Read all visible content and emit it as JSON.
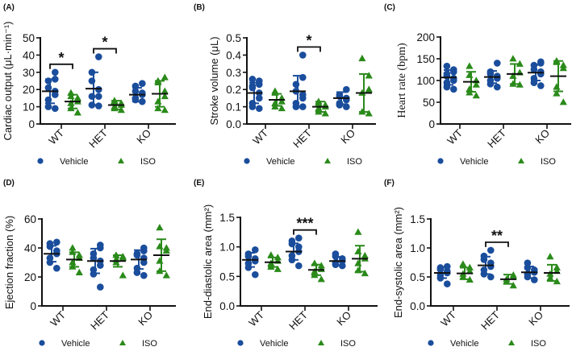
{
  "colors": {
    "vehicle": "#1a4d9c",
    "iso": "#2a8a1a",
    "axis": "#111111"
  },
  "legend": {
    "vehicle": "Vehicle",
    "iso": "ISO",
    "vehicle_marker": "circle",
    "iso_marker": "triangle"
  },
  "chart_data": [
    {
      "type": "scatter",
      "panel": "(A)",
      "ylabel": "Cardiac output (μL·min⁻¹)",
      "ylim": [
        0,
        50
      ],
      "yticks": [
        "0",
        "10",
        "20",
        "30",
        "40",
        "50"
      ],
      "yticks_values": [
        0,
        10,
        20,
        30,
        40,
        50
      ],
      "categories": [
        "WT",
        "HET",
        "KO"
      ],
      "series": [
        {
          "name": "Vehicle",
          "points": [
            [
              9,
              10,
              14,
              17,
              19,
              21,
              25,
              26,
              30
            ],
            [
              10.5,
              11,
              16,
              16,
              20,
              25,
              30,
              39
            ],
            [
              13,
              14,
              15,
              17,
              18,
              19,
              22,
              23.5
            ]
          ],
          "mean": [
            19,
            20.5,
            17
          ],
          "sd": [
            7,
            9.5,
            4
          ]
        },
        {
          "name": "ISO",
          "points": [
            [
              6.5,
              9,
              12,
              13,
              15,
              16,
              18
            ],
            [
              8,
              9,
              10,
              11,
              12,
              13,
              13.5
            ],
            [
              8,
              9,
              13,
              16,
              19,
              24,
              25,
              27
            ]
          ],
          "mean": [
            13,
            11,
            17.5
          ],
          "sd": [
            4,
            2.5,
            7.5
          ]
        }
      ],
      "significance": [
        {
          "category": "WT",
          "label": "*"
        },
        {
          "category": "HET",
          "label": "*"
        }
      ]
    },
    {
      "type": "scatter",
      "panel": "(B)",
      "ylabel": "Stroke volume (μL)",
      "ylim": [
        0,
        0.5
      ],
      "yticks": [
        "0.0",
        "0.1",
        "0.2",
        "0.3",
        "0.4",
        "0.5"
      ],
      "yticks_values": [
        0,
        0.1,
        0.2,
        0.3,
        0.4,
        0.5
      ],
      "categories": [
        "WT",
        "HET",
        "KO"
      ],
      "series": [
        {
          "name": "Vehicle",
          "points": [
            [
              0.09,
              0.1,
              0.12,
              0.15,
              0.18,
              0.21,
              0.22,
              0.23,
              0.25,
              0.26
            ],
            [
              0.1,
              0.1,
              0.12,
              0.15,
              0.17,
              0.19,
              0.23,
              0.27,
              0.4
            ],
            [
              0.1,
              0.11,
              0.12,
              0.14,
              0.15,
              0.16,
              0.17,
              0.2
            ]
          ],
          "mean": [
            0.18,
            0.19,
            0.15
          ],
          "sd": [
            0.06,
            0.09,
            0.035
          ]
        },
        {
          "name": "ISO",
          "points": [
            [
              0.09,
              0.1,
              0.12,
              0.13,
              0.15,
              0.18,
              0.19
            ],
            [
              0.06,
              0.07,
              0.09,
              0.1,
              0.11,
              0.12,
              0.13
            ],
            [
              0.06,
              0.07,
              0.18,
              0.2,
              0.28,
              0.38
            ]
          ],
          "mean": [
            0.14,
            0.1,
            0.18
          ],
          "sd": [
            0.035,
            0.03,
            0.11
          ]
        }
      ],
      "significance": [
        {
          "category": "HET",
          "label": "*"
        }
      ]
    },
    {
      "type": "scatter",
      "panel": "(C)",
      "ylabel": "Heart rate (bpm)",
      "ylim": [
        0,
        200
      ],
      "yticks": [
        "0",
        "50",
        "100",
        "150",
        "200"
      ],
      "yticks_values": [
        0,
        50,
        100,
        150,
        200
      ],
      "categories": [
        "WT",
        "HET",
        "KO"
      ],
      "series": [
        {
          "name": "Vehicle",
          "points": [
            [
              80,
              85,
              95,
              100,
              105,
              110,
              115,
              120,
              125,
              133
            ],
            [
              85,
              92,
              100,
              105,
              110,
              115,
              120,
              140
            ],
            [
              88,
              95,
              105,
              115,
              120,
              125,
              135,
              140,
              143
            ]
          ],
          "mean": [
            107,
            108,
            118
          ],
          "sd": [
            17,
            14,
            18
          ]
        },
        {
          "name": "ISO",
          "points": [
            [
              65,
              72,
              80,
              90,
              100,
              112,
              133
            ],
            [
              90,
              92,
              110,
              118,
              138,
              150
            ],
            [
              50,
              70,
              85,
              128,
              135,
              142,
              145
            ]
          ],
          "mean": [
            97,
            115,
            110
          ],
          "sd": [
            23,
            23,
            35
          ]
        }
      ],
      "significance": []
    },
    {
      "type": "scatter",
      "panel": "(D)",
      "ylabel": "Ejection fraction (%)",
      "ylim": [
        0,
        60
      ],
      "yticks": [
        "0",
        "20",
        "40",
        "60"
      ],
      "yticks_values": [
        0,
        20,
        40,
        60
      ],
      "categories": [
        "WT",
        "HET",
        "KO"
      ],
      "series": [
        {
          "name": "Vehicle",
          "points": [
            [
              26,
              30,
              33,
              36,
              38,
              41,
              43,
              44
            ],
            [
              13,
              22,
              25,
              28,
              31,
              33,
              36,
              40,
              42
            ],
            [
              21,
              23,
              26,
              30,
              33,
              35,
              36,
              38,
              40
            ]
          ],
          "mean": [
            36,
            31,
            32
          ],
          "sd": [
            5.5,
            8.5,
            6.5
          ]
        },
        {
          "name": "ISO",
          "points": [
            [
              23,
              27,
              30,
              33,
              35,
              37,
              40
            ],
            [
              21,
              30,
              32,
              33,
              34,
              35
            ],
            [
              21,
              24,
              31,
              38,
              40,
              41,
              54
            ]
          ],
          "mean": [
            32,
            31,
            35
          ],
          "sd": [
            5,
            4,
            11
          ]
        }
      ],
      "significance": []
    },
    {
      "type": "scatter",
      "panel": "(E)",
      "ylabel": "End-diastolic area (mm²)",
      "ylim": [
        0,
        1.5
      ],
      "yticks": [
        "0.0",
        "0.5",
        "1.0",
        "1.5"
      ],
      "yticks_values": [
        0,
        0.5,
        1.0,
        1.5
      ],
      "categories": [
        "WT",
        "HET",
        "KO"
      ],
      "series": [
        {
          "name": "Vehicle",
          "points": [
            [
              0.53,
              0.65,
              0.72,
              0.76,
              0.8,
              0.84,
              0.88,
              0.95
            ],
            [
              0.68,
              0.78,
              0.85,
              0.92,
              1.0,
              1.05,
              1.1,
              1.15
            ],
            [
              0.68,
              0.7,
              0.73,
              0.76,
              0.8,
              0.84,
              0.88
            ]
          ],
          "mean": [
            0.78,
            0.92,
            0.76
          ],
          "sd": [
            0.12,
            0.14,
            0.07
          ]
        },
        {
          "name": "ISO",
          "points": [
            [
              0.62,
              0.66,
              0.72,
              0.76,
              0.82,
              0.86
            ],
            [
              0.45,
              0.52,
              0.58,
              0.62,
              0.68,
              0.72
            ],
            [
              0.55,
              0.6,
              0.72,
              0.8,
              0.85,
              0.92,
              1.25
            ]
          ],
          "mean": [
            0.74,
            0.61,
            0.8
          ],
          "sd": [
            0.08,
            0.09,
            0.22
          ]
        }
      ],
      "significance": [
        {
          "category": "HET",
          "label": "***"
        }
      ]
    },
    {
      "type": "scatter",
      "panel": "(F)",
      "ylabel": "End-systolic area (mm²)",
      "ylim": [
        0,
        1.5
      ],
      "yticks": [
        "0.0",
        "0.5",
        "1.0",
        "1.5"
      ],
      "yticks_values": [
        0,
        0.5,
        1.0,
        1.5
      ],
      "categories": [
        "WT",
        "HET",
        "KO"
      ],
      "series": [
        {
          "name": "Vehicle",
          "points": [
            [
              0.38,
              0.48,
              0.53,
              0.57,
              0.6,
              0.63,
              0.66,
              0.68
            ],
            [
              0.5,
              0.55,
              0.62,
              0.68,
              0.74,
              0.8,
              0.86,
              0.96
            ],
            [
              0.45,
              0.5,
              0.55,
              0.58,
              0.62,
              0.66,
              0.74
            ]
          ],
          "mean": [
            0.57,
            0.7,
            0.58
          ],
          "sd": [
            0.09,
            0.15,
            0.1
          ]
        },
        {
          "name": "ISO",
          "points": [
            [
              0.45,
              0.5,
              0.55,
              0.6,
              0.66,
              0.72
            ],
            [
              0.35,
              0.42,
              0.46,
              0.5,
              0.53
            ],
            [
              0.42,
              0.48,
              0.55,
              0.6,
              0.66,
              0.85
            ]
          ],
          "mean": [
            0.56,
            0.46,
            0.57
          ],
          "sd": [
            0.1,
            0.08,
            0.14
          ]
        }
      ],
      "significance": [
        {
          "category": "HET",
          "label": "**"
        }
      ]
    }
  ]
}
